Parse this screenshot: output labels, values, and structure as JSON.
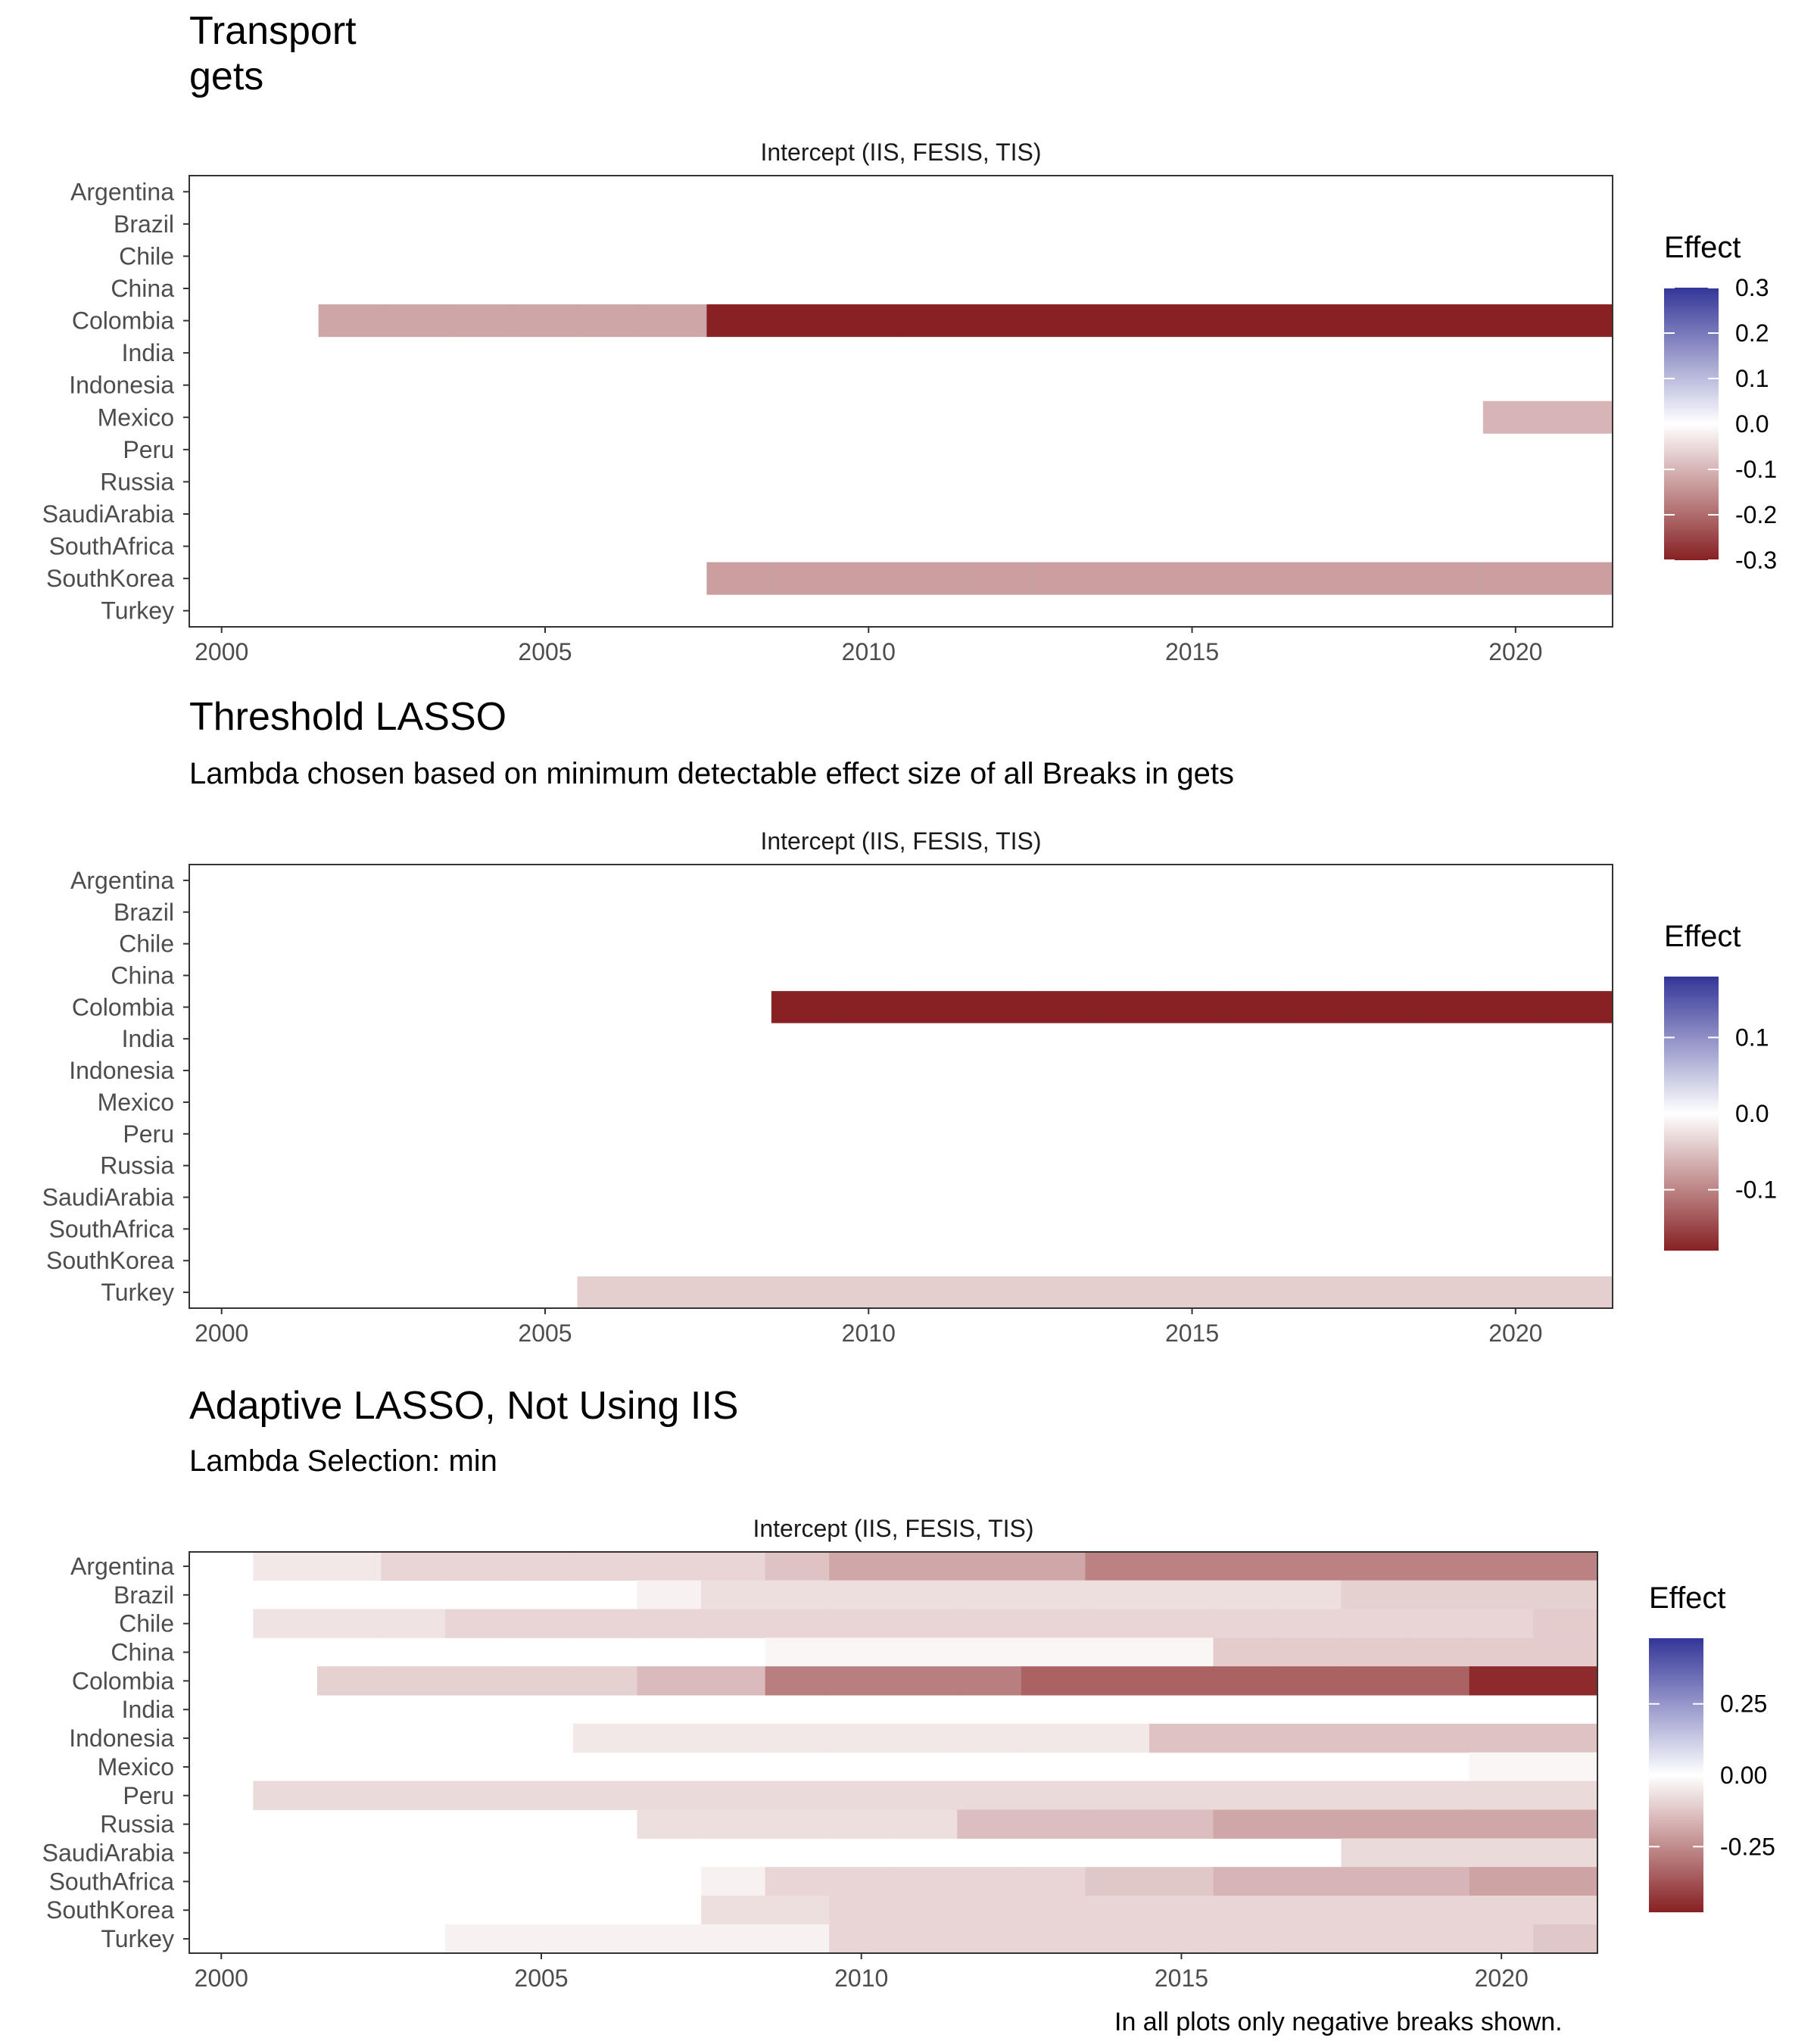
{
  "caption": "In all plots only negative breaks shown.",
  "chart_data": [
    {
      "type": "heatmap",
      "title": "Transport\ngets",
      "subtitle": "",
      "facet_label": "Intercept (IIS, FESIS, TIS)",
      "countries": [
        "Argentina",
        "Brazil",
        "Chile",
        "China",
        "Colombia",
        "India",
        "Indonesia",
        "Mexico",
        "Peru",
        "Russia",
        "SaudiArabia",
        "SouthAfrica",
        "SouthKorea",
        "Turkey"
      ],
      "x_ticks": [
        2000,
        2005,
        2010,
        2015,
        2020
      ],
      "xlim": [
        1999.5,
        2021.5
      ],
      "legend": {
        "title": "Effect",
        "limits": [
          -0.3,
          0.3
        ],
        "ticks": [
          0.3,
          0.2,
          0.1,
          0.0,
          -0.1,
          -0.2,
          -0.3
        ],
        "tick_labels": [
          "0.3",
          "0.2",
          "0.1",
          "0.0",
          "-0.1",
          "-0.2",
          "-0.3"
        ]
      },
      "segments": [
        {
          "country": "Colombia",
          "from": 2002,
          "to": 2007,
          "value": -0.12
        },
        {
          "country": "Colombia",
          "from": 2008,
          "to": 2021,
          "value": -0.3
        },
        {
          "country": "Mexico",
          "from": 2020,
          "to": 2021,
          "value": -0.1
        },
        {
          "country": "SouthKorea",
          "from": 2008,
          "to": 2021,
          "value": -0.13
        }
      ]
    },
    {
      "type": "heatmap",
      "title": "Threshold LASSO",
      "subtitle": "Lambda chosen based on minimum detectable effect size of all Breaks in gets",
      "facet_label": "Intercept (IIS, FESIS, TIS)",
      "countries": [
        "Argentina",
        "Brazil",
        "Chile",
        "China",
        "Colombia",
        "India",
        "Indonesia",
        "Mexico",
        "Peru",
        "Russia",
        "SaudiArabia",
        "SouthAfrica",
        "SouthKorea",
        "Turkey"
      ],
      "x_ticks": [
        2000,
        2005,
        2010,
        2015,
        2020
      ],
      "xlim": [
        1999.5,
        2021.5
      ],
      "legend": {
        "title": "Effect",
        "limits": [
          -0.18,
          0.18
        ],
        "ticks": [
          0.1,
          0.0,
          -0.1
        ],
        "tick_labels": [
          "0.1",
          "0.0",
          "-0.1"
        ]
      },
      "segments": [
        {
          "country": "Colombia",
          "from": 2009,
          "to": 2021,
          "value": -0.18
        },
        {
          "country": "Turkey",
          "from": 2006,
          "to": 2021,
          "value": -0.04
        }
      ]
    },
    {
      "type": "heatmap",
      "title": "Adaptive LASSO, Not Using IIS",
      "subtitle": "Lambda Selection: min",
      "facet_label": "Intercept (IIS, FESIS, TIS)",
      "countries": [
        "Argentina",
        "Brazil",
        "Chile",
        "China",
        "Colombia",
        "India",
        "Indonesia",
        "Mexico",
        "Peru",
        "Russia",
        "SaudiArabia",
        "SouthAfrica",
        "SouthKorea",
        "Turkey"
      ],
      "x_ticks": [
        2000,
        2005,
        2010,
        2015,
        2020
      ],
      "xlim": [
        1999.5,
        2021.5
      ],
      "legend": {
        "title": "Effect",
        "limits": [
          -0.48,
          0.48
        ],
        "ticks": [
          0.25,
          0.0,
          -0.25
        ],
        "tick_labels": [
          "0.25",
          "0.00",
          "-0.25"
        ]
      },
      "segments": [
        {
          "country": "Argentina",
          "from": 2001,
          "to": 2002,
          "value": -0.05
        },
        {
          "country": "Argentina",
          "from": 2003,
          "to": 2008,
          "value": -0.09
        },
        {
          "country": "Argentina",
          "from": 2009,
          "to": 2009,
          "value": -0.13
        },
        {
          "country": "Argentina",
          "from": 2010,
          "to": 2013,
          "value": -0.19
        },
        {
          "country": "Argentina",
          "from": 2014,
          "to": 2021,
          "value": -0.27
        },
        {
          "country": "Brazil",
          "from": 2007,
          "to": 2007,
          "value": -0.03
        },
        {
          "country": "Brazil",
          "from": 2008,
          "to": 2017,
          "value": -0.07
        },
        {
          "country": "Brazil",
          "from": 2018,
          "to": 2021,
          "value": -0.1
        },
        {
          "country": "Chile",
          "from": 2001,
          "to": 2003,
          "value": -0.06
        },
        {
          "country": "Chile",
          "from": 2004,
          "to": 2020,
          "value": -0.09
        },
        {
          "country": "Chile",
          "from": 2021,
          "to": 2021,
          "value": -0.11
        },
        {
          "country": "China",
          "from": 2009,
          "to": 2015,
          "value": -0.02
        },
        {
          "country": "China",
          "from": 2016,
          "to": 2021,
          "value": -0.11
        },
        {
          "country": "Colombia",
          "from": 2002,
          "to": 2006,
          "value": -0.1
        },
        {
          "country": "Colombia",
          "from": 2007,
          "to": 2008,
          "value": -0.15
        },
        {
          "country": "Colombia",
          "from": 2009,
          "to": 2012,
          "value": -0.28
        },
        {
          "country": "Colombia",
          "from": 2013,
          "to": 2019,
          "value": -0.34
        },
        {
          "country": "Colombia",
          "from": 2020,
          "to": 2021,
          "value": -0.46
        },
        {
          "country": "Indonesia",
          "from": 2006,
          "to": 2014,
          "value": -0.05
        },
        {
          "country": "Indonesia",
          "from": 2015,
          "to": 2021,
          "value": -0.13
        },
        {
          "country": "Mexico",
          "from": 2020,
          "to": 2021,
          "value": -0.02
        },
        {
          "country": "Peru",
          "from": 2001,
          "to": 2021,
          "value": -0.08
        },
        {
          "country": "Russia",
          "from": 2007,
          "to": 2011,
          "value": -0.07
        },
        {
          "country": "Russia",
          "from": 2012,
          "to": 2015,
          "value": -0.14
        },
        {
          "country": "Russia",
          "from": 2016,
          "to": 2021,
          "value": -0.19
        },
        {
          "country": "SaudiArabia",
          "from": 2018,
          "to": 2021,
          "value": -0.08
        },
        {
          "country": "SouthAfrica",
          "from": 2008,
          "to": 2008,
          "value": -0.03
        },
        {
          "country": "SouthAfrica",
          "from": 2009,
          "to": 2013,
          "value": -0.09
        },
        {
          "country": "SouthAfrica",
          "from": 2014,
          "to": 2015,
          "value": -0.12
        },
        {
          "country": "SouthAfrica",
          "from": 2016,
          "to": 2019,
          "value": -0.16
        },
        {
          "country": "SouthAfrica",
          "from": 2020,
          "to": 2021,
          "value": -0.2
        },
        {
          "country": "SouthKorea",
          "from": 2008,
          "to": 2009,
          "value": -0.07
        },
        {
          "country": "SouthKorea",
          "from": 2010,
          "to": 2021,
          "value": -0.09
        },
        {
          "country": "Turkey",
          "from": 2004,
          "to": 2009,
          "value": -0.03
        },
        {
          "country": "Turkey",
          "from": 2010,
          "to": 2020,
          "value": -0.09
        },
        {
          "country": "Turkey",
          "from": 2021,
          "to": 2021,
          "value": -0.12
        }
      ]
    }
  ]
}
